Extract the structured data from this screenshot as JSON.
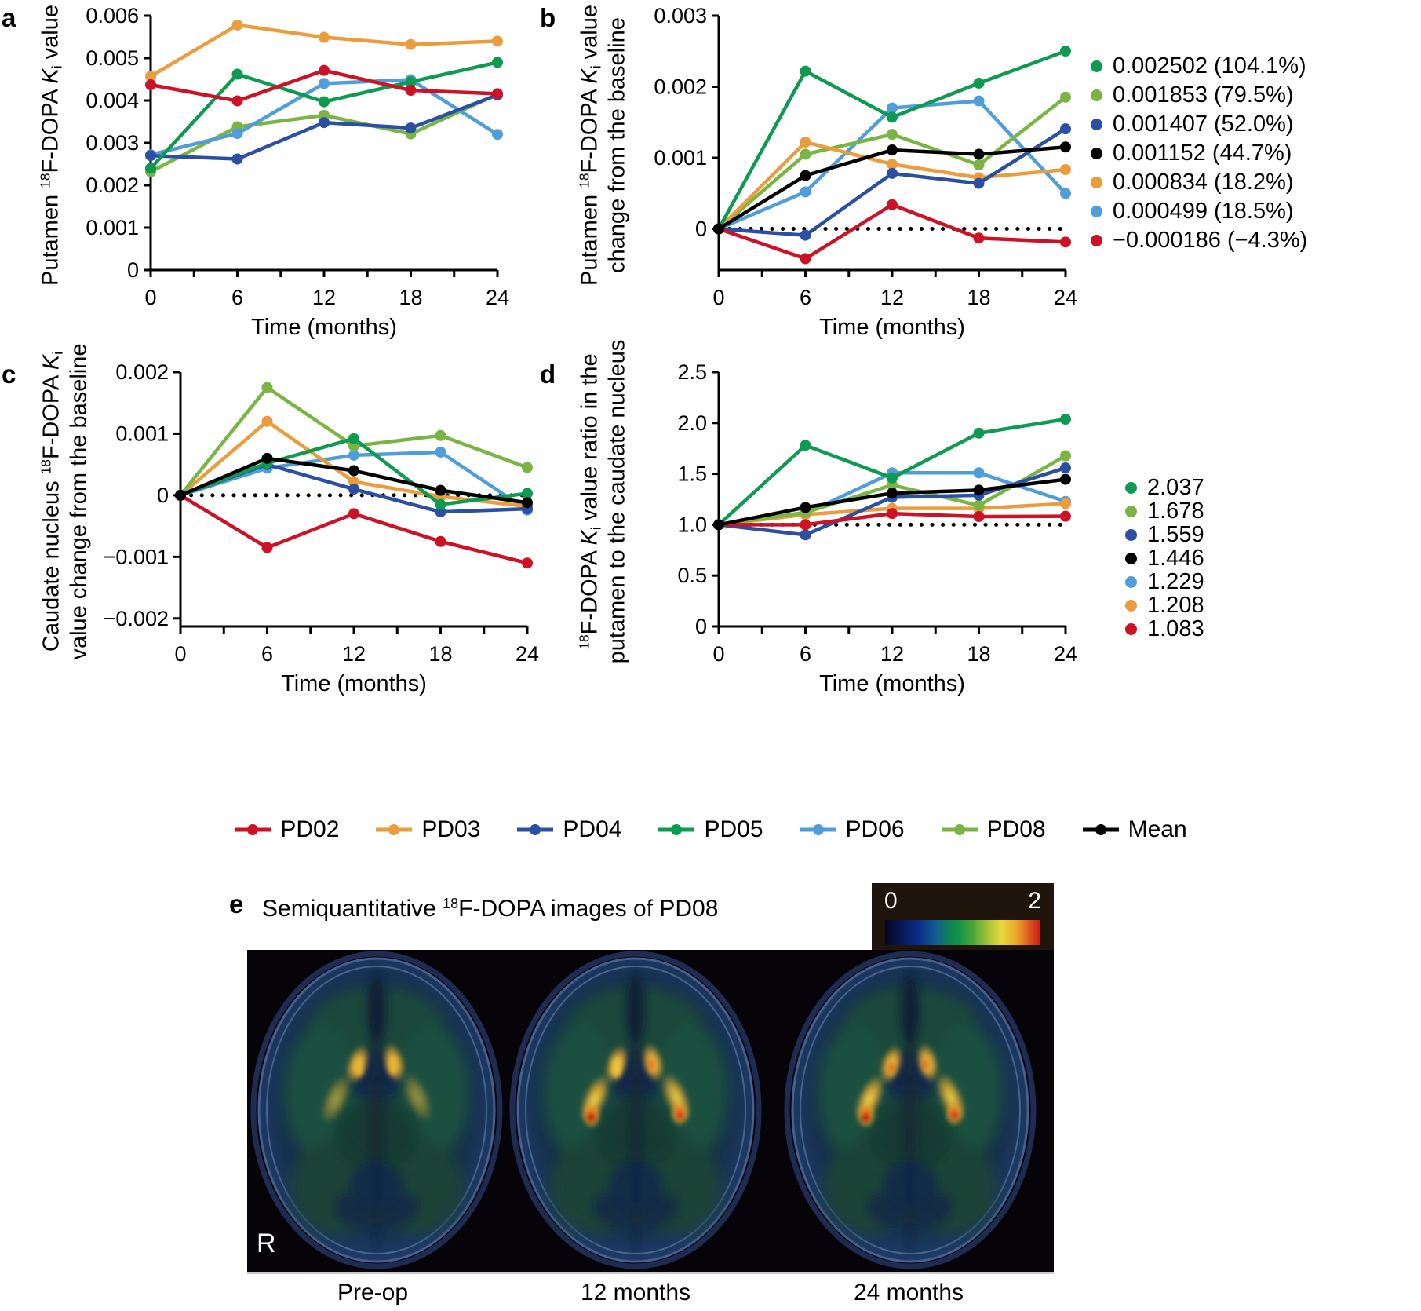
{
  "series_colors": {
    "PD02": "#cd1226",
    "PD03": "#eb9c3d",
    "PD04": "#2b4fa2",
    "PD05": "#0f9a52",
    "PD06": "#4f9ed9",
    "PD08": "#7ab544",
    "Mean": "#000000"
  },
  "figure_legend": {
    "items": [
      {
        "id": "PD02",
        "label": "PD02"
      },
      {
        "id": "PD03",
        "label": "PD03"
      },
      {
        "id": "PD04",
        "label": "PD04"
      },
      {
        "id": "PD05",
        "label": "PD05"
      },
      {
        "id": "PD06",
        "label": "PD06"
      },
      {
        "id": "PD08",
        "label": "PD08"
      },
      {
        "id": "Mean",
        "label": "Mean"
      }
    ]
  },
  "chart_data": [
    {
      "panel": "a",
      "letter": "a",
      "type": "line",
      "ylabel": "Putamen [18]F-DOPA [Ki] value",
      "xlabel": "Time (months)",
      "x": [
        0,
        6,
        12,
        18,
        24
      ],
      "x_minor_step": 3,
      "ylim": [
        0,
        0.006
      ],
      "yticks": [
        {
          "v": 0,
          "label": "0"
        },
        {
          "v": 0.001,
          "label": "0.001"
        },
        {
          "v": 0.002,
          "label": "0.002"
        },
        {
          "v": 0.003,
          "label": "0.003"
        },
        {
          "v": 0.004,
          "label": "0.004"
        },
        {
          "v": 0.005,
          "label": "0.005"
        },
        {
          "v": 0.006,
          "label": "0.006"
        }
      ],
      "baseline": null,
      "grid": false,
      "draw_order": [
        "PD03",
        "PD08",
        "PD06",
        "PD04",
        "PD05",
        "PD02"
      ],
      "series": [
        {
          "name": "PD02",
          "values": [
            0.00437,
            0.00399,
            0.00471,
            0.00424,
            0.00416
          ]
        },
        {
          "name": "PD03",
          "values": [
            0.00457,
            0.00578,
            0.00549,
            0.00532,
            0.0054
          ]
        },
        {
          "name": "PD04",
          "values": [
            0.0027,
            0.00262,
            0.00348,
            0.00335,
            0.00413
          ]
        },
        {
          "name": "PD05",
          "values": [
            0.0024,
            0.00462,
            0.00397,
            0.00444,
            0.0049
          ]
        },
        {
          "name": "PD06",
          "values": [
            0.00272,
            0.00322,
            0.0044,
            0.00449,
            0.0032
          ]
        },
        {
          "name": "PD08",
          "values": [
            0.00232,
            0.00338,
            0.00365,
            0.00321,
            0.00415
          ]
        }
      ]
    },
    {
      "panel": "b",
      "letter": "b",
      "type": "line",
      "ylabel": "Putamen [18]F-DOPA [Ki] value\nchange from the baseline",
      "xlabel": "Time (months)",
      "x": [
        0,
        6,
        12,
        18,
        24
      ],
      "x_minor_step": 3,
      "ylim": [
        -0.00058,
        0.003
      ],
      "yticks": [
        {
          "v": 0,
          "label": "0"
        },
        {
          "v": 0.001,
          "label": "0.001"
        },
        {
          "v": 0.002,
          "label": "0.002"
        },
        {
          "v": 0.003,
          "label": "0.003"
        }
      ],
      "baseline": 0,
      "grid": false,
      "draw_order": [
        "PD06",
        "PD08",
        "PD03",
        "PD04",
        "PD05",
        "PD02",
        "Mean"
      ],
      "series": [
        {
          "name": "PD02",
          "values": [
            0,
            -0.00042,
            0.00034,
            -0.00013,
            -0.000186
          ]
        },
        {
          "name": "PD03",
          "values": [
            0,
            0.00122,
            0.00091,
            0.00072,
            0.000834
          ]
        },
        {
          "name": "PD04",
          "values": [
            0,
            -9e-05,
            0.00078,
            0.00064,
            0.001407
          ]
        },
        {
          "name": "PD05",
          "values": [
            0,
            0.00222,
            0.00157,
            0.00205,
            0.002502
          ]
        },
        {
          "name": "PD06",
          "values": [
            0,
            0.00052,
            0.0017,
            0.0018,
            0.000499
          ]
        },
        {
          "name": "PD08",
          "values": [
            0,
            0.00105,
            0.00133,
            0.0009,
            0.001853
          ]
        },
        {
          "name": "Mean",
          "values": [
            0,
            0.00075,
            0.00111,
            0.00105,
            0.001152
          ]
        }
      ],
      "legend": [
        {
          "id": "PD05",
          "label": "0.002502 (104.1%)"
        },
        {
          "id": "PD08",
          "label": "0.001853 (79.5%)"
        },
        {
          "id": "PD04",
          "label": "0.001407 (52.0%)"
        },
        {
          "id": "Mean",
          "label": "0.001152 (44.7%)"
        },
        {
          "id": "PD03",
          "label": "0.000834 (18.2%)"
        },
        {
          "id": "PD06",
          "label": "0.000499 (18.5%)"
        },
        {
          "id": "PD02",
          "label": "−0.000186 (−4.3%)"
        }
      ]
    },
    {
      "panel": "c",
      "letter": "c",
      "type": "line",
      "ylabel": "Caudate nucleus [18]F-DOPA [Ki]\nvalue change from the baseline",
      "xlabel": "Time (months)",
      "x": [
        0,
        6,
        12,
        18,
        24
      ],
      "x_minor_step": 3,
      "ylim": [
        -0.00213,
        0.002
      ],
      "yticks": [
        {
          "v": -0.002,
          "label": "−0.002"
        },
        {
          "v": -0.001,
          "label": "−0.001"
        },
        {
          "v": 0,
          "label": "0"
        },
        {
          "v": 0.001,
          "label": "0.001"
        },
        {
          "v": 0.002,
          "label": "0.002"
        }
      ],
      "baseline": 0,
      "grid": false,
      "draw_order": [
        "PD06",
        "PD03",
        "PD08",
        "PD04",
        "PD05",
        "PD02",
        "Mean"
      ],
      "series": [
        {
          "name": "PD02",
          "values": [
            0,
            -0.00085,
            -0.0003,
            -0.00075,
            -0.0011
          ]
        },
        {
          "name": "PD03",
          "values": [
            0,
            0.0012,
            0.00022,
            -2e-05,
            -0.00018
          ]
        },
        {
          "name": "PD04",
          "values": [
            0,
            0.0005,
            0.0001,
            -0.00027,
            -0.00022
          ]
        },
        {
          "name": "PD05",
          "values": [
            0,
            0.00052,
            0.00092,
            -0.00015,
            3e-05
          ]
        },
        {
          "name": "PD06",
          "values": [
            0,
            0.00044,
            0.00065,
            0.0007,
            -0.00024
          ]
        },
        {
          "name": "PD08",
          "values": [
            0,
            0.00175,
            0.0008,
            0.00097,
            0.00045
          ]
        },
        {
          "name": "Mean",
          "values": [
            0,
            0.0006,
            0.0004,
            8e-05,
            -0.00012
          ]
        }
      ]
    },
    {
      "panel": "d",
      "letter": "d",
      "type": "line",
      "ylabel": "[18]F-DOPA [Ki] value ratio in the\nputamen to the caudate nucleus",
      "xlabel": "Time (months)",
      "x": [
        0,
        6,
        12,
        18,
        24
      ],
      "x_minor_step": 3,
      "ylim": [
        0,
        2.5
      ],
      "yticks": [
        {
          "v": 0,
          "label": "0"
        },
        {
          "v": 0.5,
          "label": "0.5"
        },
        {
          "v": 1.0,
          "label": "1.0"
        },
        {
          "v": 1.5,
          "label": "1.5"
        },
        {
          "v": 2.0,
          "label": "2.0"
        },
        {
          "v": 2.5,
          "label": "2.5"
        }
      ],
      "baseline": 1.0,
      "grid": false,
      "draw_order": [
        "PD06",
        "PD03",
        "PD08",
        "PD04",
        "PD05",
        "PD02",
        "Mean"
      ],
      "series": [
        {
          "name": "PD02",
          "values": [
            1,
            1.0,
            1.11,
            1.08,
            1.083
          ]
        },
        {
          "name": "PD03",
          "values": [
            1,
            1.1,
            1.16,
            1.16,
            1.208
          ]
        },
        {
          "name": "PD04",
          "values": [
            1,
            0.9,
            1.27,
            1.29,
            1.559
          ]
        },
        {
          "name": "PD05",
          "values": [
            1,
            1.78,
            1.46,
            1.9,
            2.037
          ]
        },
        {
          "name": "PD06",
          "values": [
            1,
            1.11,
            1.51,
            1.51,
            1.229
          ]
        },
        {
          "name": "PD08",
          "values": [
            1,
            1.12,
            1.39,
            1.19,
            1.678
          ]
        },
        {
          "name": "Mean",
          "values": [
            1,
            1.17,
            1.31,
            1.34,
            1.446
          ]
        }
      ],
      "legend": [
        {
          "id": "PD05",
          "label": "2.037"
        },
        {
          "id": "PD08",
          "label": "1.678"
        },
        {
          "id": "PD04",
          "label": "1.559"
        },
        {
          "id": "Mean",
          "label": "1.446"
        },
        {
          "id": "PD06",
          "label": "1.229"
        },
        {
          "id": "PD03",
          "label": "1.208"
        },
        {
          "id": "PD02",
          "label": "1.083"
        }
      ]
    }
  ],
  "panel_e": {
    "letter": "e",
    "title": "Semiquantitative [18]F-DOPA images of PD08",
    "colorbar": {
      "min_label": "0",
      "max_label": "2"
    },
    "orientation_label": "R",
    "image_captions": [
      "Pre-op",
      "12 months",
      "24 months"
    ]
  }
}
